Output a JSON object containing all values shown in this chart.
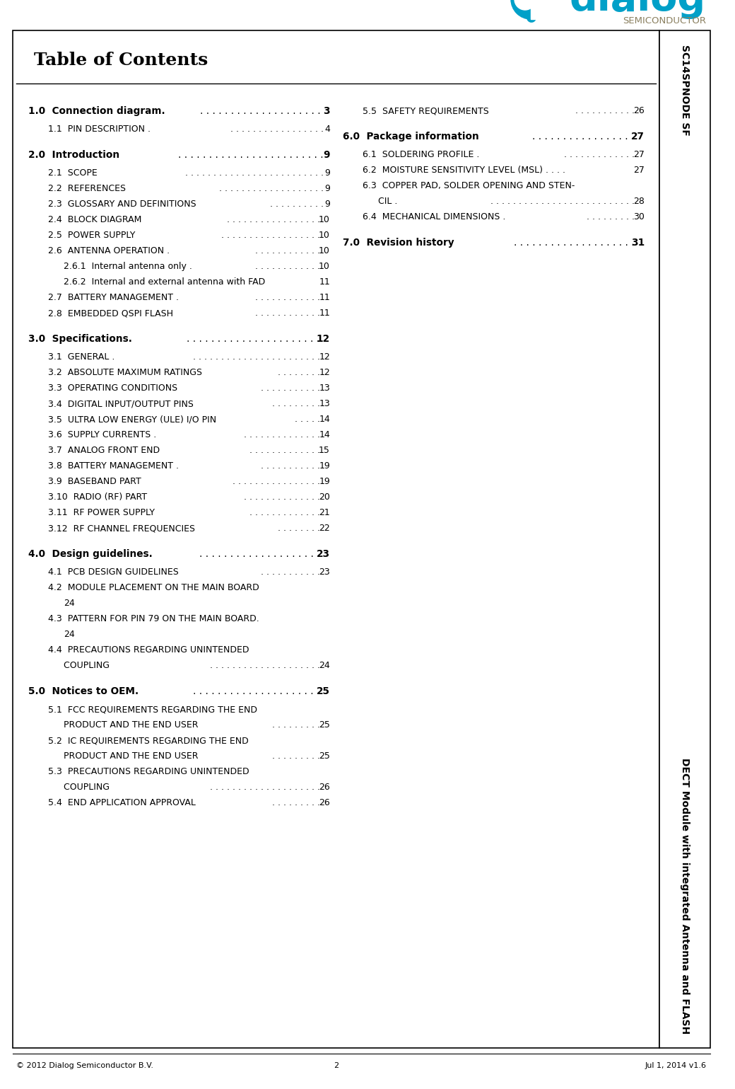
{
  "title": "Table of Contents",
  "logo_color": "#00a0c8",
  "logo_semiconductor_color": "#8B8060",
  "sidebar_top": "SC14SPNODE SF",
  "sidebar_bottom": "DECT Module with integrated Antenna and FLASH",
  "footer_left": "© 2012 Dialog Semiconductor B.V.",
  "footer_center": "2",
  "footer_right": "Jul 1, 2014 v1.6",
  "left_entries": [
    {
      "level": 1,
      "text": "1.0  Connection diagram.",
      "dots": ". . . . . . . . . . . . . . . . . . . . ",
      "page": "3",
      "bold": true,
      "space_before": true
    },
    {
      "level": 2,
      "text": "1.1  PIN DESCRIPTION . ",
      "dots": ". . . . . . . . . . . . . . . . .",
      "page": "4",
      "bold": false,
      "space_before": false
    },
    {
      "level": 1,
      "text": "2.0  Introduction  ",
      "dots": ". . . . . . . . . . . . . . . . . . . . . . . .",
      "page": "9",
      "bold": true,
      "space_before": true
    },
    {
      "level": 2,
      "text": "2.1  SCOPE ",
      "dots": ". . . . . . . . . . . . . . . . . . . . . . . . .",
      "page": "9",
      "bold": false,
      "space_before": false
    },
    {
      "level": 2,
      "text": "2.2  REFERENCES ",
      "dots": ". . . . . . . . . . . . . . . . . . .",
      "page": "9",
      "bold": false,
      "space_before": false
    },
    {
      "level": 2,
      "text": "2.3  GLOSSARY AND DEFINITIONS  ",
      "dots": ". . . . . . . . . .",
      "page": "9",
      "bold": false,
      "space_before": false
    },
    {
      "level": 2,
      "text": "2.4  BLOCK DIAGRAM  ",
      "dots": ". . . . . . . . . . . . . . . . .",
      "page": "10",
      "bold": false,
      "space_before": false
    },
    {
      "level": 2,
      "text": "2.5  POWER SUPPLY ",
      "dots": ". . . . . . . . . . . . . . . . . .",
      "page": "10",
      "bold": false,
      "space_before": false
    },
    {
      "level": 2,
      "text": "2.6  ANTENNA OPERATION . ",
      "dots": ". . . . . . . . . . . .",
      "page": "10",
      "bold": false,
      "space_before": false
    },
    {
      "level": 3,
      "text": "2.6.1  Internal antenna only . ",
      "dots": ". . . . . . . . . . . .",
      "page": "10",
      "bold": false,
      "space_before": false
    },
    {
      "level": 3,
      "text": "2.6.2  Internal and external antenna with FAD  ",
      "dots": "",
      "page": "11",
      "bold": false,
      "space_before": false
    },
    {
      "level": 2,
      "text": "2.7  BATTERY MANAGEMENT . ",
      "dots": ". . . . . . . . . . . .",
      "page": "11",
      "bold": false,
      "space_before": false
    },
    {
      "level": 2,
      "text": "2.8  EMBEDDED QSPI FLASH  ",
      "dots": ". . . . . . . . . . . .",
      "page": "11",
      "bold": false,
      "space_before": false
    },
    {
      "level": 1,
      "text": "3.0  Specifications.",
      "dots": ". . . . . . . . . . . . . . . . . . . . . .",
      "page": "12",
      "bold": true,
      "space_before": true
    },
    {
      "level": 2,
      "text": "3.1  GENERAL . ",
      "dots": ". . . . . . . . . . . . . . . . . . . . . . .",
      "page": "12",
      "bold": false,
      "space_before": false
    },
    {
      "level": 2,
      "text": "3.2  ABSOLUTE MAXIMUM RATINGS  ",
      "dots": ". . . . . . . .",
      "page": "12",
      "bold": false,
      "space_before": false
    },
    {
      "level": 2,
      "text": "3.3  OPERATING CONDITIONS  ",
      "dots": ". . . . . . . . . . .",
      "page": "13",
      "bold": false,
      "space_before": false
    },
    {
      "level": 2,
      "text": "3.4  DIGITAL INPUT/OUTPUT PINS  ",
      "dots": ". . . . . . . . .",
      "page": "13",
      "bold": false,
      "space_before": false
    },
    {
      "level": 2,
      "text": "3.5  ULTRA LOW ENERGY (ULE) I/O PIN  ",
      "dots": ". . . . .",
      "page": "14",
      "bold": false,
      "space_before": false
    },
    {
      "level": 2,
      "text": "3.6  SUPPLY CURRENTS . ",
      "dots": ". . . . . . . . . . . . . .",
      "page": "14",
      "bold": false,
      "space_before": false
    },
    {
      "level": 2,
      "text": "3.7  ANALOG FRONT END  ",
      "dots": ". . . . . . . . . . . . .",
      "page": "15",
      "bold": false,
      "space_before": false
    },
    {
      "level": 2,
      "text": "3.8  BATTERY MANAGEMENT . ",
      "dots": ". . . . . . . . . . .",
      "page": "19",
      "bold": false,
      "space_before": false
    },
    {
      "level": 2,
      "text": "3.9  BASEBAND PART  ",
      "dots": ". . . . . . . . . . . . . . . .",
      "page": "19",
      "bold": false,
      "space_before": false
    },
    {
      "level": 2,
      "text": "3.10  RADIO (RF) PART  ",
      "dots": ". . . . . . . . . . . . . .",
      "page": "20",
      "bold": false,
      "space_before": false
    },
    {
      "level": 2,
      "text": "3.11  RF POWER SUPPLY  ",
      "dots": ". . . . . . . . . . . . .",
      "page": "21",
      "bold": false,
      "space_before": false
    },
    {
      "level": 2,
      "text": "3.12  RF CHANNEL FREQUENCIES   ",
      "dots": ". . . . . . . .",
      "page": "22",
      "bold": false,
      "space_before": false
    },
    {
      "level": 1,
      "text": "4.0  Design guidelines.",
      "dots": ". . . . . . . . . . . . . . . . . . . .",
      "page": "23",
      "bold": true,
      "space_before": true
    },
    {
      "level": 2,
      "text": "4.1  PCB DESIGN GUIDELINES  ",
      "dots": ". . . . . . . . . . .",
      "page": "23",
      "bold": false,
      "space_before": false
    },
    {
      "level": 2,
      "text": "4.2  MODULE PLACEMENT ON THE MAIN BOARD",
      "dots": "",
      "page": "",
      "bold": false,
      "space_before": false
    },
    {
      "level": 3,
      "text": "24",
      "dots": "",
      "page": "",
      "bold": false,
      "space_before": false
    },
    {
      "level": 2,
      "text": "4.3  PATTERN FOR PIN 79 ON THE MAIN BOARD.",
      "dots": "",
      "page": "",
      "bold": false,
      "space_before": false
    },
    {
      "level": 3,
      "text": "24",
      "dots": "",
      "page": "",
      "bold": false,
      "space_before": false
    },
    {
      "level": 2,
      "text": "4.4  PRECAUTIONS REGARDING UNINTENDED",
      "dots": "",
      "page": "",
      "bold": false,
      "space_before": false
    },
    {
      "level": 3,
      "text": "COUPLING  ",
      "dots": ". . . . . . . . . . . . . . . . . . . .",
      "page": "24",
      "bold": false,
      "space_before": false
    },
    {
      "level": 1,
      "text": "5.0  Notices to OEM.",
      "dots": ". . . . . . . . . . . . . . . . . . . . .",
      "page": "25",
      "bold": true,
      "space_before": true
    },
    {
      "level": 2,
      "text": "5.1  FCC REQUIREMENTS REGARDING THE END",
      "dots": "",
      "page": "",
      "bold": false,
      "space_before": false
    },
    {
      "level": 3,
      "text": "PRODUCT AND THE END USER  ",
      "dots": ". . . . . . . . .",
      "page": "25",
      "bold": false,
      "space_before": false
    },
    {
      "level": 2,
      "text": "5.2  IC REQUIREMENTS REGARDING THE END",
      "dots": "",
      "page": "",
      "bold": false,
      "space_before": false
    },
    {
      "level": 3,
      "text": "PRODUCT AND THE END USER  ",
      "dots": ". . . . . . . . .",
      "page": "25",
      "bold": false,
      "space_before": false
    },
    {
      "level": 2,
      "text": "5.3  PRECAUTIONS REGARDING UNINTENDED",
      "dots": "",
      "page": "",
      "bold": false,
      "space_before": false
    },
    {
      "level": 3,
      "text": "COUPLING  ",
      "dots": ". . . . . . . . . . . . . . . . . . . .",
      "page": "26",
      "bold": false,
      "space_before": false
    },
    {
      "level": 2,
      "text": "5.4  END APPLICATION APPROVAL  ",
      "dots": ". . . . . . . . .",
      "page": "26",
      "bold": false,
      "space_before": false
    }
  ],
  "right_entries": [
    {
      "level": 2,
      "text": "5.5  SAFETY REQUIREMENTS   ",
      "dots": ". . . . . . . . . . .",
      "page": "26",
      "bold": false,
      "space_before": true
    },
    {
      "level": 1,
      "text": "6.0  Package information  ",
      "dots": ". . . . . . . . . . . . . . . . .",
      "page": "27",
      "bold": true,
      "space_before": true
    },
    {
      "level": 2,
      "text": "6.1  SOLDERING PROFILE . ",
      "dots": ". . . . . . . . . . . . .",
      "page": "27",
      "bold": false,
      "space_before": false
    },
    {
      "level": 2,
      "text": "6.2  MOISTURE SENSITIVITY LEVEL (MSL) . . . .",
      "dots": "",
      "page": "27",
      "bold": false,
      "space_before": false
    },
    {
      "level": 2,
      "text": "6.3  COPPER PAD, SOLDER OPENING AND STEN-",
      "dots": "",
      "page": "",
      "bold": false,
      "space_before": false
    },
    {
      "level": 3,
      "text": "CIL . ",
      "dots": ". . . . . . . . . . . . . . . . . . . . . . . . . .",
      "page": "28",
      "bold": false,
      "space_before": false
    },
    {
      "level": 2,
      "text": "6.4  MECHANICAL DIMENSIONS . ",
      "dots": ". . . . . . . . .",
      "page": "30",
      "bold": false,
      "space_before": false
    },
    {
      "level": 1,
      "text": "7.0  Revision history  ",
      "dots": ". . . . . . . . . . . . . . . . . . . .",
      "page": "31",
      "bold": true,
      "space_before": true
    }
  ],
  "border_color": "#000000",
  "background_color": "#ffffff"
}
